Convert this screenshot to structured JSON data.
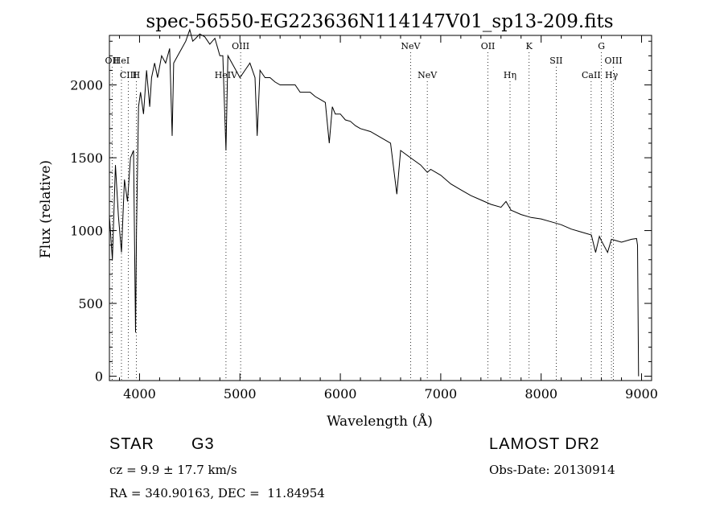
{
  "chart_data": {
    "type": "line",
    "title": "spec-56550-EG223636N114147V01_sp13-209.fits",
    "xlabel": "Wavelength (Å)",
    "ylabel": "Flux (relative)",
    "xlim": [
      3700,
      9100
    ],
    "ylim": [
      -30,
      2340
    ],
    "grid": false,
    "x_ticks": [
      4000,
      5000,
      6000,
      7000,
      8000,
      9000
    ],
    "y_ticks": [
      0,
      500,
      1000,
      1500,
      2000
    ],
    "series": [
      {
        "x": [
          3700,
          3730,
          3760,
          3790,
          3820,
          3850,
          3880,
          3910,
          3940,
          3960,
          3970,
          3990,
          4010,
          4040,
          4070,
          4101,
          4120,
          4150,
          4180,
          4220,
          4260,
          4300,
          4325,
          4340,
          4380,
          4420,
          4460,
          4500,
          4530,
          4560,
          4600,
          4650,
          4700,
          4750,
          4780,
          4800,
          4830,
          4861,
          4880,
          4920,
          4960,
          5000,
          5050,
          5100,
          5150,
          5172,
          5200,
          5250,
          5300,
          5350,
          5400,
          5450,
          5500,
          5550,
          5600,
          5650,
          5700,
          5750,
          5800,
          5850,
          5890,
          5920,
          5950,
          6000,
          6050,
          6100,
          6150,
          6200,
          6300,
          6400,
          6500,
          6563,
          6600,
          6700,
          6800,
          6866,
          6900,
          7000,
          7100,
          7200,
          7300,
          7400,
          7500,
          7600,
          7650,
          7700,
          7800,
          7900,
          8000,
          8100,
          8200,
          8300,
          8400,
          8500,
          8542,
          8580,
          8600,
          8662,
          8700,
          8800,
          8900,
          8950,
          8960,
          8970
        ],
        "values": [
          1100,
          800,
          1450,
          1100,
          850,
          1350,
          1200,
          1500,
          1550,
          300,
          1000,
          1850,
          1950,
          1800,
          2100,
          1850,
          2050,
          2150,
          2050,
          2200,
          2150,
          2250,
          1650,
          2150,
          2200,
          2250,
          2300,
          2380,
          2300,
          2320,
          2350,
          2330,
          2280,
          2320,
          2250,
          2200,
          2200,
          1550,
          2200,
          2150,
          2100,
          2050,
          2100,
          2150,
          2050,
          1650,
          2100,
          2050,
          2050,
          2020,
          2000,
          2000,
          2000,
          2000,
          1950,
          1950,
          1950,
          1920,
          1900,
          1880,
          1600,
          1850,
          1800,
          1800,
          1760,
          1750,
          1720,
          1700,
          1680,
          1640,
          1600,
          1250,
          1550,
          1500,
          1450,
          1400,
          1420,
          1380,
          1320,
          1280,
          1240,
          1210,
          1180,
          1160,
          1200,
          1140,
          1110,
          1090,
          1080,
          1060,
          1040,
          1010,
          990,
          970,
          850,
          960,
          930,
          850,
          940,
          920,
          940,
          945,
          900,
          0
        ]
      }
    ],
    "lines": [
      {
        "label": "OII",
        "x": 3727,
        "row": 1
      },
      {
        "label": "HeI",
        "x": 3820,
        "row": 1
      },
      {
        "label": "CIII",
        "x": 3889,
        "row": 2
      },
      {
        "label": "H",
        "x": 3968,
        "row": 2
      },
      {
        "label": "HeIV",
        "x": 4861,
        "row": 2
      },
      {
        "label": "OIII",
        "x": 5007,
        "row": 0
      },
      {
        "label": "NeV",
        "x": 6700,
        "row": 0
      },
      {
        "label": "NeV",
        "x": 6866,
        "row": 2
      },
      {
        "label": "OII",
        "x": 7470,
        "row": 0
      },
      {
        "label": "Hη",
        "x": 7690,
        "row": 2
      },
      {
        "label": "K",
        "x": 7880,
        "row": 0
      },
      {
        "label": "SII",
        "x": 8150,
        "row": 1
      },
      {
        "label": "CaII",
        "x": 8498,
        "row": 2
      },
      {
        "label": "G",
        "x": 8600,
        "row": 0
      },
      {
        "label": "Hγ",
        "x": 8700,
        "row": 2
      },
      {
        "label": "OIII",
        "x": 8720,
        "row": 1
      }
    ]
  },
  "info": {
    "object_class": "STAR",
    "subclass": "G3",
    "survey": "LAMOST DR2",
    "cz": "cz = 9.9 ± 17.7 km/s",
    "obs_date": "Obs-Date: 20130914",
    "coords": "RA = 340.90163, DEC =  11.84954"
  }
}
